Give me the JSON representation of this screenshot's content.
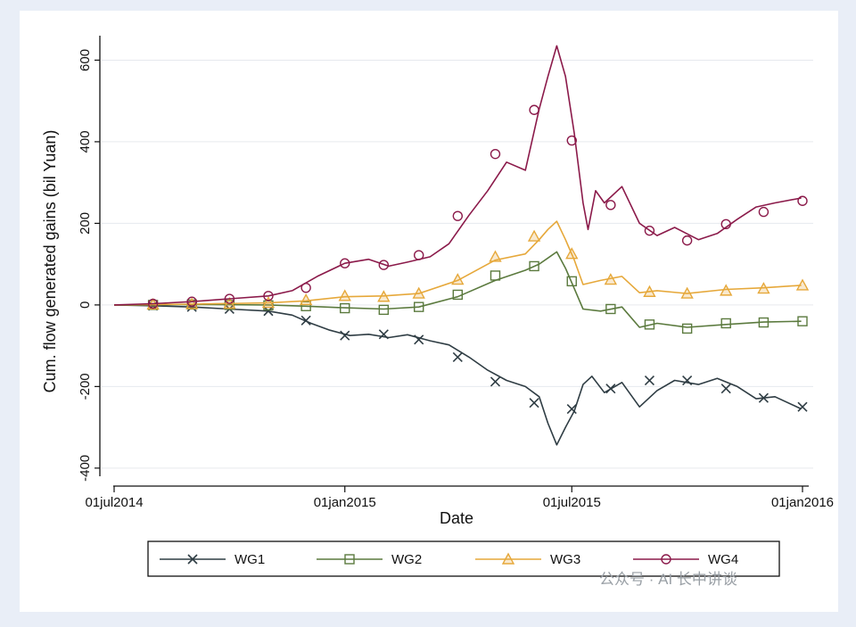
{
  "chart_data": {
    "type": "line",
    "xlabel": "Date",
    "ylabel": "Cum. flow generated gains (bil Yuan)",
    "ylim": [
      -420,
      660
    ],
    "xlim": [
      "2014-07-01",
      "2016-01-01"
    ],
    "x_ticks": [
      {
        "date": "2014-07-01",
        "label": "01jul2014"
      },
      {
        "date": "2015-01-01",
        "label": "01jan2015"
      },
      {
        "date": "2015-07-01",
        "label": "01jul2015"
      },
      {
        "date": "2016-01-01",
        "label": "01jan2016"
      }
    ],
    "y_ticks": [
      -400,
      -200,
      0,
      200,
      400,
      600
    ],
    "grid": "horizontal",
    "legend_position": "bottom",
    "series": [
      {
        "name": "WG1",
        "color": "#2f3d44",
        "marker": "x",
        "points": [
          [
            "2014-07-01",
            0
          ],
          [
            "2014-08-01",
            -2
          ],
          [
            "2014-09-01",
            -5
          ],
          [
            "2014-10-01",
            -10
          ],
          [
            "2014-11-01",
            -15
          ],
          [
            "2014-11-20",
            -25
          ],
          [
            "2014-12-05",
            -45
          ],
          [
            "2014-12-20",
            -62
          ],
          [
            "2015-01-05",
            -75
          ],
          [
            "2015-01-20",
            -72
          ],
          [
            "2015-02-05",
            -80
          ],
          [
            "2015-02-20",
            -73
          ],
          [
            "2015-03-10",
            -88
          ],
          [
            "2015-03-25",
            -98
          ],
          [
            "2015-04-10",
            -128
          ],
          [
            "2015-04-25",
            -160
          ],
          [
            "2015-05-10",
            -185
          ],
          [
            "2015-05-25",
            -200
          ],
          [
            "2015-06-05",
            -225
          ],
          [
            "2015-06-12",
            -290
          ],
          [
            "2015-06-19",
            -343
          ],
          [
            "2015-06-26",
            -300
          ],
          [
            "2015-07-03",
            -260
          ],
          [
            "2015-07-10",
            -195
          ],
          [
            "2015-07-17",
            -175
          ],
          [
            "2015-07-27",
            -215
          ],
          [
            "2015-08-10",
            -190
          ],
          [
            "2015-08-24",
            -250
          ],
          [
            "2015-09-07",
            -210
          ],
          [
            "2015-09-21",
            -185
          ],
          [
            "2015-10-10",
            -195
          ],
          [
            "2015-10-25",
            -180
          ],
          [
            "2015-11-10",
            -200
          ],
          [
            "2015-11-25",
            -230
          ],
          [
            "2015-12-10",
            -225
          ],
          [
            "2015-12-31",
            -255
          ]
        ],
        "markers": [
          [
            "2014-08-01",
            -2
          ],
          [
            "2014-09-01",
            -5
          ],
          [
            "2014-10-01",
            -10
          ],
          [
            "2014-11-01",
            -15
          ],
          [
            "2014-12-01",
            -38
          ],
          [
            "2015-01-01",
            -75
          ],
          [
            "2015-02-01",
            -72
          ],
          [
            "2015-03-01",
            -85
          ],
          [
            "2015-04-01",
            -128
          ],
          [
            "2015-05-01",
            -188
          ],
          [
            "2015-06-01",
            -240
          ],
          [
            "2015-07-01",
            -255
          ],
          [
            "2015-08-01",
            -205
          ],
          [
            "2015-09-01",
            -185
          ],
          [
            "2015-10-01",
            -185
          ],
          [
            "2015-11-01",
            -205
          ],
          [
            "2015-12-01",
            -228
          ],
          [
            "2016-01-01",
            -250
          ]
        ]
      },
      {
        "name": "WG2",
        "color": "#5b7a3e",
        "marker": "square",
        "points": [
          [
            "2014-07-01",
            0
          ],
          [
            "2014-09-01",
            1
          ],
          [
            "2014-11-01",
            0
          ],
          [
            "2014-12-01",
            -3
          ],
          [
            "2015-01-01",
            -7
          ],
          [
            "2015-02-01",
            -10
          ],
          [
            "2015-03-01",
            -5
          ],
          [
            "2015-04-01",
            20
          ],
          [
            "2015-05-01",
            60
          ],
          [
            "2015-05-25",
            85
          ],
          [
            "2015-06-05",
            100
          ],
          [
            "2015-06-12",
            115
          ],
          [
            "2015-06-19",
            130
          ],
          [
            "2015-06-26",
            90
          ],
          [
            "2015-07-03",
            40
          ],
          [
            "2015-07-10",
            -10
          ],
          [
            "2015-07-24",
            -15
          ],
          [
            "2015-08-10",
            -5
          ],
          [
            "2015-08-24",
            -55
          ],
          [
            "2015-09-07",
            -45
          ],
          [
            "2015-10-01",
            -55
          ],
          [
            "2015-11-01",
            -48
          ],
          [
            "2015-12-01",
            -42
          ],
          [
            "2015-12-31",
            -40
          ]
        ],
        "markers": [
          [
            "2014-08-01",
            0
          ],
          [
            "2014-09-01",
            1
          ],
          [
            "2014-10-01",
            0
          ],
          [
            "2014-11-01",
            -1
          ],
          [
            "2014-12-01",
            -3
          ],
          [
            "2015-01-01",
            -8
          ],
          [
            "2015-02-01",
            -12
          ],
          [
            "2015-03-01",
            -5
          ],
          [
            "2015-04-01",
            25
          ],
          [
            "2015-05-01",
            72
          ],
          [
            "2015-06-01",
            95
          ],
          [
            "2015-07-01",
            58
          ],
          [
            "2015-08-01",
            -10
          ],
          [
            "2015-09-01",
            -48
          ],
          [
            "2015-10-01",
            -58
          ],
          [
            "2015-11-01",
            -45
          ],
          [
            "2015-12-01",
            -43
          ],
          [
            "2016-01-01",
            -40
          ]
        ]
      },
      {
        "name": "WG3",
        "color": "#e6a83a",
        "marker": "triangle",
        "points": [
          [
            "2014-07-01",
            0
          ],
          [
            "2014-09-01",
            2
          ],
          [
            "2014-11-01",
            5
          ],
          [
            "2014-12-01",
            10
          ],
          [
            "2015-01-01",
            20
          ],
          [
            "2015-02-01",
            22
          ],
          [
            "2015-03-01",
            28
          ],
          [
            "2015-04-01",
            60
          ],
          [
            "2015-05-01",
            110
          ],
          [
            "2015-05-25",
            125
          ],
          [
            "2015-06-05",
            160
          ],
          [
            "2015-06-12",
            185
          ],
          [
            "2015-06-19",
            205
          ],
          [
            "2015-06-26",
            160
          ],
          [
            "2015-07-03",
            110
          ],
          [
            "2015-07-10",
            50
          ],
          [
            "2015-07-24",
            60
          ],
          [
            "2015-08-10",
            70
          ],
          [
            "2015-08-24",
            30
          ],
          [
            "2015-09-07",
            35
          ],
          [
            "2015-10-01",
            28
          ],
          [
            "2015-11-01",
            38
          ],
          [
            "2015-12-01",
            42
          ],
          [
            "2015-12-31",
            48
          ]
        ],
        "markers": [
          [
            "2014-08-01",
            1
          ],
          [
            "2014-09-01",
            2
          ],
          [
            "2014-10-01",
            3
          ],
          [
            "2014-11-01",
            5
          ],
          [
            "2014-12-01",
            12
          ],
          [
            "2015-01-01",
            22
          ],
          [
            "2015-02-01",
            20
          ],
          [
            "2015-03-01",
            28
          ],
          [
            "2015-04-01",
            62
          ],
          [
            "2015-05-01",
            118
          ],
          [
            "2015-06-01",
            168
          ],
          [
            "2015-07-01",
            125
          ],
          [
            "2015-08-01",
            62
          ],
          [
            "2015-09-01",
            32
          ],
          [
            "2015-10-01",
            28
          ],
          [
            "2015-11-01",
            35
          ],
          [
            "2015-12-01",
            40
          ],
          [
            "2016-01-01",
            48
          ]
        ]
      },
      {
        "name": "WG4",
        "color": "#8b1a4a",
        "marker": "circle",
        "points": [
          [
            "2014-07-01",
            0
          ],
          [
            "2014-08-01",
            3
          ],
          [
            "2014-09-01",
            8
          ],
          [
            "2014-10-01",
            15
          ],
          [
            "2014-11-01",
            22
          ],
          [
            "2014-11-20",
            35
          ],
          [
            "2014-12-10",
            70
          ],
          [
            "2015-01-01",
            102
          ],
          [
            "2015-01-20",
            112
          ],
          [
            "2015-02-05",
            95
          ],
          [
            "2015-02-20",
            105
          ],
          [
            "2015-03-10",
            118
          ],
          [
            "2015-03-25",
            150
          ],
          [
            "2015-04-10",
            220
          ],
          [
            "2015-04-25",
            280
          ],
          [
            "2015-05-10",
            350
          ],
          [
            "2015-05-25",
            330
          ],
          [
            "2015-06-05",
            480
          ],
          [
            "2015-06-12",
            560
          ],
          [
            "2015-06-19",
            635
          ],
          [
            "2015-06-26",
            560
          ],
          [
            "2015-07-03",
            420
          ],
          [
            "2015-07-10",
            250
          ],
          [
            "2015-07-14",
            185
          ],
          [
            "2015-07-20",
            280
          ],
          [
            "2015-07-27",
            250
          ],
          [
            "2015-08-10",
            290
          ],
          [
            "2015-08-24",
            200
          ],
          [
            "2015-09-07",
            170
          ],
          [
            "2015-09-21",
            190
          ],
          [
            "2015-10-10",
            160
          ],
          [
            "2015-10-25",
            175
          ],
          [
            "2015-11-10",
            210
          ],
          [
            "2015-11-25",
            240
          ],
          [
            "2015-12-10",
            250
          ],
          [
            "2015-12-31",
            262
          ]
        ],
        "markers": [
          [
            "2014-08-01",
            3
          ],
          [
            "2014-09-01",
            8
          ],
          [
            "2014-10-01",
            15
          ],
          [
            "2014-11-01",
            22
          ],
          [
            "2014-12-01",
            42
          ],
          [
            "2015-01-01",
            102
          ],
          [
            "2015-02-01",
            98
          ],
          [
            "2015-03-01",
            122
          ],
          [
            "2015-04-01",
            218
          ],
          [
            "2015-05-01",
            370
          ],
          [
            "2015-06-01",
            478
          ],
          [
            "2015-07-01",
            403
          ],
          [
            "2015-08-01",
            245
          ],
          [
            "2015-09-01",
            182
          ],
          [
            "2015-10-01",
            158
          ],
          [
            "2015-11-01",
            198
          ],
          [
            "2015-12-01",
            228
          ],
          [
            "2016-01-01",
            255
          ]
        ]
      }
    ]
  },
  "watermark": "公众号 · AI 长中讲谈"
}
